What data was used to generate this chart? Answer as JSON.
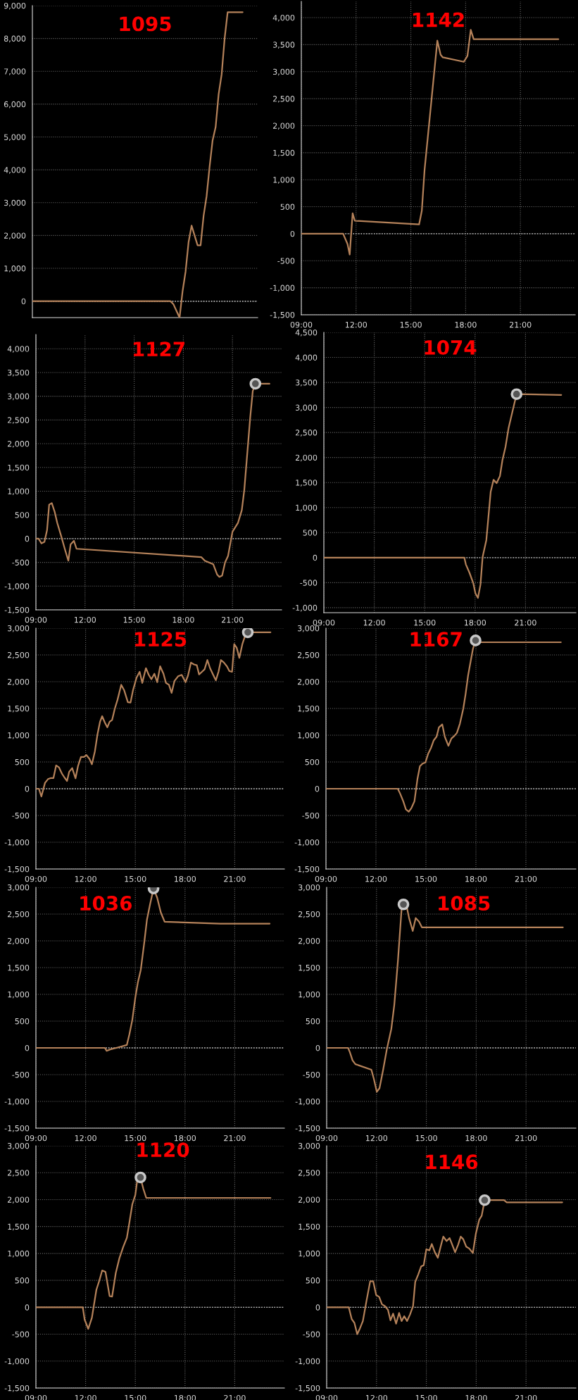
{
  "chart_data": [
    {
      "type": "line",
      "title": "1095",
      "categories": [
        null,
        null,
        null,
        null,
        null,
        null,
        null,
        null,
        null,
        null,
        null,
        null,
        null,
        null,
        null,
        null,
        null,
        null,
        null,
        null,
        null,
        null,
        null,
        null,
        null,
        null,
        null,
        null,
        null,
        null,
        null,
        null,
        null,
        null,
        null,
        null,
        null,
        null,
        null,
        null,
        null,
        null,
        null,
        null,
        null,
        null,
        null,
        null,
        null,
        null,
        null,
        null,
        null,
        null,
        null,
        null,
        null,
        null,
        null,
        null,
        null,
        null,
        null,
        null,
        null,
        null,
        null,
        null,
        null,
        null,
        null,
        null,
        null,
        null,
        null,
        null
      ],
      "ylim": [
        -500,
        9000
      ],
      "yticks": [
        0,
        {
          "value": 1000,
          "label": "1,000"
        },
        {
          "value": 2000,
          "label": "2,000"
        },
        {
          "value": 3000,
          "label": "3,000"
        },
        {
          "value": 4000,
          "label": "4,000"
        },
        {
          "value": 5000,
          "label": "5,000"
        },
        {
          "value": 6000,
          "label": "6,000"
        },
        {
          "value": 7000,
          "label": "7,000"
        },
        {
          "value": 8000,
          "label": "8,000"
        },
        {
          "value": 9000,
          "label": "9,000"
        }
      ],
      "tick_labels": "y",
      "grid": "y",
      "ref_lines": [
        {
          "axis": "y",
          "value": 0,
          "color": "#e0e0e0",
          "line_style": "dotted"
        }
      ],
      "series": [
        {
          "color": "#b5825a",
          "values": [
            0,
            0,
            0,
            0,
            0,
            0,
            0,
            0,
            0,
            0,
            0,
            0,
            0,
            0,
            0,
            0,
            0,
            0,
            0,
            0,
            0,
            0,
            0,
            0,
            0,
            0,
            0,
            0,
            0,
            0,
            0,
            0,
            0,
            0,
            0,
            0,
            0,
            0,
            0,
            0,
            0,
            0,
            0,
            0,
            0,
            0,
            0,
            -100,
            -300,
            -500,
            300,
            900,
            1800,
            2300,
            2000,
            1700,
            1700,
            2600,
            3200,
            4100,
            4900,
            5300,
            6300,
            6900,
            8000,
            8800,
            8800,
            8800,
            8800,
            8800,
            8800,
            null,
            null,
            null,
            null,
            null
          ]
        }
      ]
    },
    {
      "type": "line",
      "title": "1142",
      "xlim": [
        9,
        24
      ],
      "ylim": [
        -1500,
        4300
      ],
      "xticks": [
        {
          "value": 9,
          "label": "09:00"
        },
        {
          "value": 12,
          "label": "12:00"
        },
        {
          "value": 15,
          "label": "15:00"
        },
        {
          "value": 18,
          "label": "18:00"
        },
        {
          "value": 21,
          "label": "21:00"
        }
      ],
      "yticks": [
        {
          "value": -1500,
          "label": "-1,500"
        },
        {
          "value": -1000,
          "label": "-1,000"
        },
        {
          "value": -500,
          "label": "-500"
        },
        0,
        500,
        {
          "value": 1000,
          "label": "1,000"
        },
        {
          "value": 1500,
          "label": "1,500"
        },
        {
          "value": 2000,
          "label": "2,000"
        },
        {
          "value": 2500,
          "label": "2,500"
        },
        {
          "value": 3000,
          "label": "3,000"
        },
        {
          "value": 3500,
          "label": "3,500"
        },
        {
          "value": 4000,
          "label": "4,000"
        }
      ],
      "grid": true,
      "ref_lines": [
        {
          "axis": "y",
          "value": 0,
          "color": "#e0e0e0",
          "line_style": "dotted"
        }
      ],
      "series": [
        {
          "color": "#b5825a",
          "x": [
            9,
            11.29,
            11.53,
            11.65,
            11.81,
            11.93,
            15.45,
            15.6,
            15.75,
            16.45,
            16.63,
            16.75,
            17.9,
            18.1,
            18.28,
            18.44,
            23.08
          ],
          "values": [
            0,
            0,
            -190,
            -385,
            378,
            240,
            172,
            426,
            1180,
            3574,
            3313,
            3265,
            3182,
            3292,
            3773,
            3601,
            3601
          ]
        }
      ]
    },
    {
      "type": "line",
      "title": "1127",
      "xlim": [
        9,
        24
      ],
      "ylim": [
        -1500,
        4300
      ],
      "xticks": [
        {
          "value": 9,
          "label": "09:00"
        },
        {
          "value": 12,
          "label": "12:00"
        },
        {
          "value": 15,
          "label": "15:00"
        },
        {
          "value": 18,
          "label": "18:00"
        },
        {
          "value": 21,
          "label": "21:00"
        }
      ],
      "yticks": [
        {
          "value": -1500,
          "label": "-1,500"
        },
        {
          "value": -1000,
          "label": "-1,000"
        },
        {
          "value": -500,
          "label": "-500"
        },
        0,
        500,
        {
          "value": 1000,
          "label": "1,000"
        },
        {
          "value": 1500,
          "label": "1,500"
        },
        {
          "value": 2000,
          "label": "2,000"
        },
        {
          "value": 2500,
          "label": "2,500"
        },
        {
          "value": 3000,
          "label": "3,000"
        },
        {
          "value": 3500,
          "label": "3,500"
        },
        {
          "value": 4000,
          "label": "4,000"
        }
      ],
      "grid": true,
      "ref_lines": [
        {
          "axis": "y",
          "value": 0,
          "color": "#e0e0e0",
          "line_style": "dotted"
        }
      ],
      "series": [
        {
          "color": "#b5825a",
          "x": [
            9.0,
            9.16,
            9.34,
            9.52,
            9.68,
            9.81,
            9.97,
            10.15,
            10.3,
            10.53,
            10.78,
            10.98,
            11.12,
            11.32,
            11.48,
            19.09,
            19.31,
            19.83,
            20.06,
            20.2,
            20.37,
            20.55,
            20.73,
            21.0,
            21.34,
            21.57,
            21.72,
            21.9,
            22.08,
            22.24,
            22.4,
            23.26
          ],
          "values": [
            0,
            0,
            -100,
            -70,
            180,
            715,
            750,
            560,
            335,
            70,
            -235,
            -465,
            -120,
            -45,
            -213,
            -388,
            -464,
            -540,
            -753,
            -806,
            -776,
            -500,
            -365,
            145,
            335,
            600,
            1020,
            1780,
            2540,
            3110,
            3262,
            3262
          ]
        },
        {
          "type": "scatter",
          "marker": "circle",
          "color": "#c8c8c8",
          "x": [
            22.4
          ],
          "values": [
            3262
          ]
        }
      ]
    },
    {
      "type": "line",
      "title": "1074",
      "xlim": [
        9,
        24
      ],
      "ylim": [
        -1100,
        4500
      ],
      "xticks": [
        {
          "value": 9,
          "label": "09:00"
        },
        {
          "value": 12,
          "label": "12:00"
        },
        {
          "value": 15,
          "label": "15:00"
        },
        {
          "value": 18,
          "label": "18:00"
        },
        {
          "value": 21,
          "label": "21:00"
        }
      ],
      "yticks": [
        {
          "value": -1000,
          "label": "-1,000"
        },
        {
          "value": -500,
          "label": "-500"
        },
        0,
        500,
        {
          "value": 1000,
          "label": "1,000"
        },
        {
          "value": 1500,
          "label": "1,500"
        },
        {
          "value": 2000,
          "label": "2,000"
        },
        {
          "value": 2500,
          "label": "2,500"
        },
        {
          "value": 3000,
          "label": "3,000"
        },
        {
          "value": 3500,
          "label": "3,500"
        },
        {
          "value": 4000,
          "label": "4,000"
        },
        {
          "value": 4500,
          "label": "4,500"
        }
      ],
      "grid": true,
      "ref_lines": [
        {
          "axis": "y",
          "value": 0,
          "color": "#e0e0e0",
          "line_style": "dotted"
        }
      ],
      "series": [
        {
          "color": "#b5825a",
          "x": [
            9,
            17.36,
            17.45,
            17.67,
            17.89,
            18.02,
            18.17,
            18.32,
            18.45,
            18.67,
            18.93,
            19.1,
            19.28,
            19.48,
            19.63,
            19.81,
            19.99,
            20.29,
            20.47,
            23.13
          ],
          "values": [
            0,
            0,
            -134,
            -305,
            -506,
            -714,
            -804,
            -543,
            15,
            350,
            1317,
            1555,
            1488,
            1630,
            1950,
            2210,
            2582,
            3013,
            3266,
            3251
          ]
        },
        {
          "type": "scatter",
          "marker": "circle",
          "color": "#c8c8c8",
          "x": [
            20.47
          ],
          "values": [
            3266
          ]
        }
      ]
    },
    {
      "type": "line",
      "title": "1125",
      "xlim": [
        9,
        24
      ],
      "ylim": [
        -1500,
        3000
      ],
      "xticks": [
        {
          "value": 9,
          "label": "09:00"
        },
        {
          "value": 12,
          "label": "12:00"
        },
        {
          "value": 15,
          "label": "15:00"
        },
        {
          "value": 18,
          "label": "18:00"
        },
        {
          "value": 21,
          "label": "21:00"
        }
      ],
      "yticks": [
        {
          "value": -1500,
          "label": "-1,500"
        },
        {
          "value": -1000,
          "label": "-1,000"
        },
        {
          "value": -500,
          "label": "-500"
        },
        0,
        500,
        {
          "value": 1000,
          "label": "1,000"
        },
        {
          "value": 1500,
          "label": "1,500"
        },
        {
          "value": 2000,
          "label": "2,000"
        },
        {
          "value": 2500,
          "label": "2,500"
        },
        {
          "value": 3000,
          "label": "3,000"
        }
      ],
      "grid": true,
      "ref_lines": [
        {
          "axis": "y",
          "value": 0,
          "color": "#e0e0e0",
          "line_style": "dotted"
        }
      ],
      "series": [
        {
          "color": "#b5825a",
          "x": [
            9.0,
            9.18,
            9.33,
            9.55,
            9.73,
            9.91,
            10.06,
            10.22,
            10.39,
            10.57,
            10.73,
            10.88,
            11.01,
            11.19,
            11.39,
            11.54,
            11.72,
            11.9,
            12.05,
            12.23,
            12.38,
            12.56,
            12.72,
            12.87,
            13.0,
            13.16,
            13.31,
            13.45,
            13.6,
            13.76,
            13.93,
            14.15,
            14.33,
            14.55,
            14.71,
            14.86,
            15.08,
            15.26,
            15.42,
            15.64,
            15.81,
            15.97,
            16.15,
            16.32,
            16.5,
            16.7,
            16.85,
            17.03,
            17.19,
            17.36,
            17.58,
            17.8,
            18.03,
            18.18,
            18.36,
            18.54,
            18.71,
            18.85,
            19.02,
            19.18,
            19.35,
            19.51,
            19.69,
            19.86,
            20.02,
            20.17,
            20.35,
            20.53,
            20.68,
            20.84,
            20.97,
            21.12,
            21.28,
            21.46,
            21.63,
            21.79,
            23.16
          ],
          "values": [
            0,
            0,
            -145,
            110,
            180,
            200,
            200,
            435,
            400,
            283,
            207,
            145,
            318,
            387,
            194,
            422,
            594,
            594,
            629,
            560,
            456,
            698,
            1023,
            1251,
            1355,
            1237,
            1147,
            1251,
            1285,
            1493,
            1666,
            1942,
            1838,
            1617,
            1610,
            1838,
            2080,
            2184,
            1977,
            2253,
            2128,
            2046,
            2149,
            1990,
            2287,
            2149,
            1977,
            1942,
            1790,
            2011,
            2101,
            2128,
            1990,
            2115,
            2357,
            2322,
            2308,
            2135,
            2184,
            2232,
            2405,
            2253,
            2135,
            2025,
            2184,
            2405,
            2357,
            2287,
            2198,
            2184,
            2702,
            2633,
            2446,
            2702,
            2861,
            2923,
            2923
          ]
        },
        {
          "type": "scatter",
          "marker": "circle",
          "color": "#c8c8c8",
          "x": [
            21.79
          ],
          "values": [
            2923
          ]
        }
      ]
    },
    {
      "type": "line",
      "title": "1167",
      "xlim": [
        9,
        24
      ],
      "ylim": [
        -1500,
        3000
      ],
      "xticks": [
        {
          "value": 9,
          "label": "09:00"
        },
        {
          "value": 12,
          "label": "12:00"
        },
        {
          "value": 15,
          "label": "15:00"
        },
        {
          "value": 18,
          "label": "18:00"
        },
        {
          "value": 21,
          "label": "21:00"
        }
      ],
      "yticks": [
        {
          "value": -1500,
          "label": "-1,500"
        },
        {
          "value": -1000,
          "label": "-1,000"
        },
        {
          "value": -500,
          "label": "-500"
        },
        0,
        500,
        {
          "value": 1000,
          "label": "1,000"
        },
        {
          "value": 1500,
          "label": "1,500"
        },
        {
          "value": 2000,
          "label": "2,000"
        },
        {
          "value": 2500,
          "label": "2,500"
        },
        {
          "value": 3000,
          "label": "3,000"
        }
      ],
      "grid": true,
      "ref_lines": [
        {
          "axis": "y",
          "value": 0,
          "color": "#e0e0e0",
          "line_style": "dotted"
        }
      ],
      "series": [
        {
          "color": "#b5825a",
          "x": [
            9,
            13.31,
            13.46,
            13.64,
            13.8,
            13.97,
            14.13,
            14.31,
            14.49,
            14.64,
            14.8,
            14.97,
            15.13,
            15.31,
            15.47,
            15.64,
            15.78,
            15.98,
            16.13,
            16.35,
            16.53,
            16.71,
            16.86,
            17.04,
            17.24,
            17.38,
            17.53,
            17.69,
            17.82,
            17.98,
            18.13,
            18.31,
            23.1
          ],
          "values": [
            0,
            0,
            -97,
            -235,
            -387,
            -428,
            -359,
            -235,
            180,
            422,
            470,
            490,
            650,
            767,
            905,
            974,
            1147,
            1202,
            974,
            802,
            940,
            988,
            1044,
            1216,
            1493,
            1769,
            2115,
            2391,
            2612,
            2771,
            2750,
            2737,
            2737
          ]
        },
        {
          "type": "scatter",
          "marker": "circle",
          "color": "#c8c8c8",
          "x": [
            17.98
          ],
          "values": [
            2771
          ]
        }
      ]
    },
    {
      "type": "line",
      "title": "1036",
      "xlim": [
        9,
        24
      ],
      "ylim": [
        -1500,
        3000
      ],
      "xticks": [
        {
          "value": 9,
          "label": "09:00"
        },
        {
          "value": 12,
          "label": "12:00"
        },
        {
          "value": 15,
          "label": "15:00"
        },
        {
          "value": 18,
          "label": "18:00"
        },
        {
          "value": 21,
          "label": "21:00"
        }
      ],
      "yticks": [
        {
          "value": -1500,
          "label": "-1,500"
        },
        {
          "value": -1000,
          "label": "-1,000"
        },
        {
          "value": -500,
          "label": "-500"
        },
        0,
        500,
        {
          "value": 1000,
          "label": "1,000"
        },
        {
          "value": 1500,
          "label": "1,500"
        },
        {
          "value": 2000,
          "label": "2,000"
        },
        {
          "value": 2500,
          "label": "2,500"
        },
        {
          "value": 3000,
          "label": "3,000"
        }
      ],
      "grid": true,
      "ref_lines": [
        {
          "axis": "y",
          "value": 0,
          "color": "#e0e0e0",
          "line_style": "dotted"
        }
      ],
      "series": [
        {
          "color": "#b5825a",
          "x": [
            9,
            13.16,
            13.27,
            13.49,
            13.93,
            14.49,
            14.64,
            14.82,
            15.0,
            15.15,
            15.33,
            15.53,
            15.7,
            15.88,
            16.1,
            16.32,
            16.54,
            16.77,
            20.13,
            23.11
          ],
          "values": [
            0,
            0,
            -55,
            -28,
            7,
            55,
            249,
            525,
            940,
            1216,
            1458,
            1942,
            2391,
            2668,
            2979,
            2806,
            2529,
            2357,
            2322,
            2322
          ]
        },
        {
          "type": "scatter",
          "marker": "circle",
          "color": "#c8c8c8",
          "x": [
            16.1
          ],
          "values": [
            2979
          ]
        }
      ]
    },
    {
      "type": "line",
      "title": "1085",
      "xlim": [
        9,
        24
      ],
      "ylim": [
        -1500,
        3000
      ],
      "xticks": [
        {
          "value": 9,
          "label": "09:00"
        },
        {
          "value": 12,
          "label": "12:00"
        },
        {
          "value": 15,
          "label": "15:00"
        },
        {
          "value": 18,
          "label": "18:00"
        },
        {
          "value": 21,
          "label": "21:00"
        }
      ],
      "yticks": [
        {
          "value": -1500,
          "label": "-1,500"
        },
        {
          "value": -1000,
          "label": "-1,000"
        },
        {
          "value": -500,
          "label": "-500"
        },
        0,
        500,
        {
          "value": 1000,
          "label": "1,000"
        },
        {
          "value": 1500,
          "label": "1,500"
        },
        {
          "value": 2000,
          "label": "2,000"
        },
        {
          "value": 2500,
          "label": "2,500"
        },
        {
          "value": 3000,
          "label": "3,000"
        }
      ],
      "grid": true,
      "ref_lines": [
        {
          "axis": "y",
          "value": 0,
          "color": "#e0e0e0",
          "line_style": "dotted"
        }
      ],
      "series": [
        {
          "color": "#b5825a",
          "x": [
            9,
            10.29,
            10.4,
            10.56,
            10.73,
            11.69,
            11.84,
            12.02,
            12.18,
            12.4,
            12.62,
            12.89,
            13.07,
            13.29,
            13.51,
            13.62,
            13.8,
            13.96,
            14.18,
            14.36,
            14.56,
            14.73,
            23.22
          ],
          "values": [
            0,
            0,
            -83,
            -235,
            -304,
            -408,
            -580,
            -822,
            -753,
            -408,
            -28,
            352,
            802,
            1631,
            2598,
            2681,
            2668,
            2426,
            2184,
            2426,
            2357,
            2253,
            2253
          ]
        },
        {
          "type": "scatter",
          "marker": "circle",
          "color": "#c8c8c8",
          "x": [
            13.62
          ],
          "values": [
            2681
          ]
        }
      ]
    },
    {
      "type": "line",
      "title": "1120",
      "xlim": [
        9,
        24
      ],
      "ylim": [
        -1500,
        3000
      ],
      "xticks": [
        {
          "value": 9,
          "label": "09:00"
        },
        {
          "value": 12,
          "label": "12:00"
        },
        {
          "value": 15,
          "label": "15:00"
        },
        {
          "value": 18,
          "label": "18:00"
        },
        {
          "value": 21,
          "label": "21:00"
        }
      ],
      "yticks": [
        {
          "value": -1500,
          "label": "-1,500"
        },
        {
          "value": -1000,
          "label": "-1,000"
        },
        {
          "value": -500,
          "label": "-500"
        },
        0,
        500,
        {
          "value": 1000,
          "label": "1,000"
        },
        {
          "value": 1500,
          "label": "1,500"
        },
        {
          "value": 2000,
          "label": "2,000"
        },
        {
          "value": 2500,
          "label": "2,500"
        },
        {
          "value": 3000,
          "label": "3,000"
        }
      ],
      "grid": true,
      "ref_lines": [
        {
          "axis": "y",
          "value": 0,
          "color": "#e0e0e0",
          "line_style": "dotted"
        }
      ],
      "series": [
        {
          "color": "#b5825a",
          "x": [
            9,
            11.83,
            11.94,
            12.16,
            12.38,
            12.65,
            12.83,
            13.0,
            13.2,
            13.45,
            13.6,
            13.82,
            14.04,
            14.27,
            14.49,
            14.64,
            14.82,
            15.0,
            15.15,
            15.31,
            15.48,
            15.66,
            23.16
          ],
          "values": [
            0,
            0,
            -228,
            -401,
            -194,
            325,
            498,
            684,
            657,
            207,
            200,
            636,
            912,
            1120,
            1292,
            1569,
            1914,
            2087,
            2433,
            2412,
            2205,
            2032,
            2032
          ]
        },
        {
          "type": "scatter",
          "marker": "circle",
          "color": "#c8c8c8",
          "x": [
            15.31
          ],
          "values": [
            2412
          ]
        }
      ]
    },
    {
      "type": "line",
      "title": "1146",
      "xlim": [
        9,
        24
      ],
      "ylim": [
        -1500,
        3000
      ],
      "xticks": [
        {
          "value": 9,
          "label": "09:00"
        },
        {
          "value": 12,
          "label": "12:00"
        },
        {
          "value": 15,
          "label": "15:00"
        },
        {
          "value": 18,
          "label": "18:00"
        },
        {
          "value": 21,
          "label": "21:00"
        }
      ],
      "yticks": [
        {
          "value": -1500,
          "label": "-1,500"
        },
        {
          "value": -1000,
          "label": "-1,000"
        },
        {
          "value": -500,
          "label": "-500"
        },
        0,
        500,
        {
          "value": 1000,
          "label": "1,000"
        },
        {
          "value": 1500,
          "label": "1,500"
        },
        {
          "value": 2000,
          "label": "2,000"
        },
        {
          "value": 2500,
          "label": "2,500"
        },
        {
          "value": 3000,
          "label": "3,000"
        }
      ],
      "grid": true,
      "ref_lines": [
        {
          "axis": "y",
          "value": 0,
          "color": "#e0e0e0",
          "line_style": "dotted"
        }
      ],
      "series": [
        {
          "color": "#b5825a",
          "x": [
            9,
            10.33,
            10.51,
            10.67,
            10.84,
            11.0,
            11.18,
            11.4,
            11.62,
            11.8,
            11.98,
            12.16,
            12.33,
            12.51,
            12.69,
            12.84,
            13.0,
            13.18,
            13.36,
            13.51,
            13.67,
            13.84,
            14.02,
            14.2,
            14.33,
            14.51,
            14.69,
            14.84,
            15.0,
            15.18,
            15.33,
            15.51,
            15.69,
            15.89,
            16.02,
            16.22,
            16.4,
            16.56,
            16.73,
            16.91,
            17.07,
            17.22,
            17.4,
            17.58,
            17.8,
            17.98,
            18.18,
            18.33,
            18.51,
            18.73,
            19.67,
            19.84,
            23.18
          ],
          "values": [
            0,
            0,
            -221,
            -290,
            -498,
            -394,
            -256,
            124,
            484,
            484,
            228,
            193,
            55,
            21,
            -48,
            -242,
            -117,
            -304,
            -104,
            -256,
            -166,
            -256,
            -131,
            21,
            470,
            608,
            760,
            781,
            1078,
            1057,
            1175,
            1023,
            919,
            1161,
            1313,
            1230,
            1285,
            1161,
            1023,
            1161,
            1313,
            1265,
            1126,
            1092,
            1009,
            1368,
            1624,
            1700,
            1990,
            1990,
            1990,
            1949,
            1949
          ]
        },
        {
          "type": "scatter",
          "marker": "circle",
          "color": "#c8c8c8",
          "x": [
            18.51
          ],
          "values": [
            1990
          ]
        }
      ]
    }
  ]
}
